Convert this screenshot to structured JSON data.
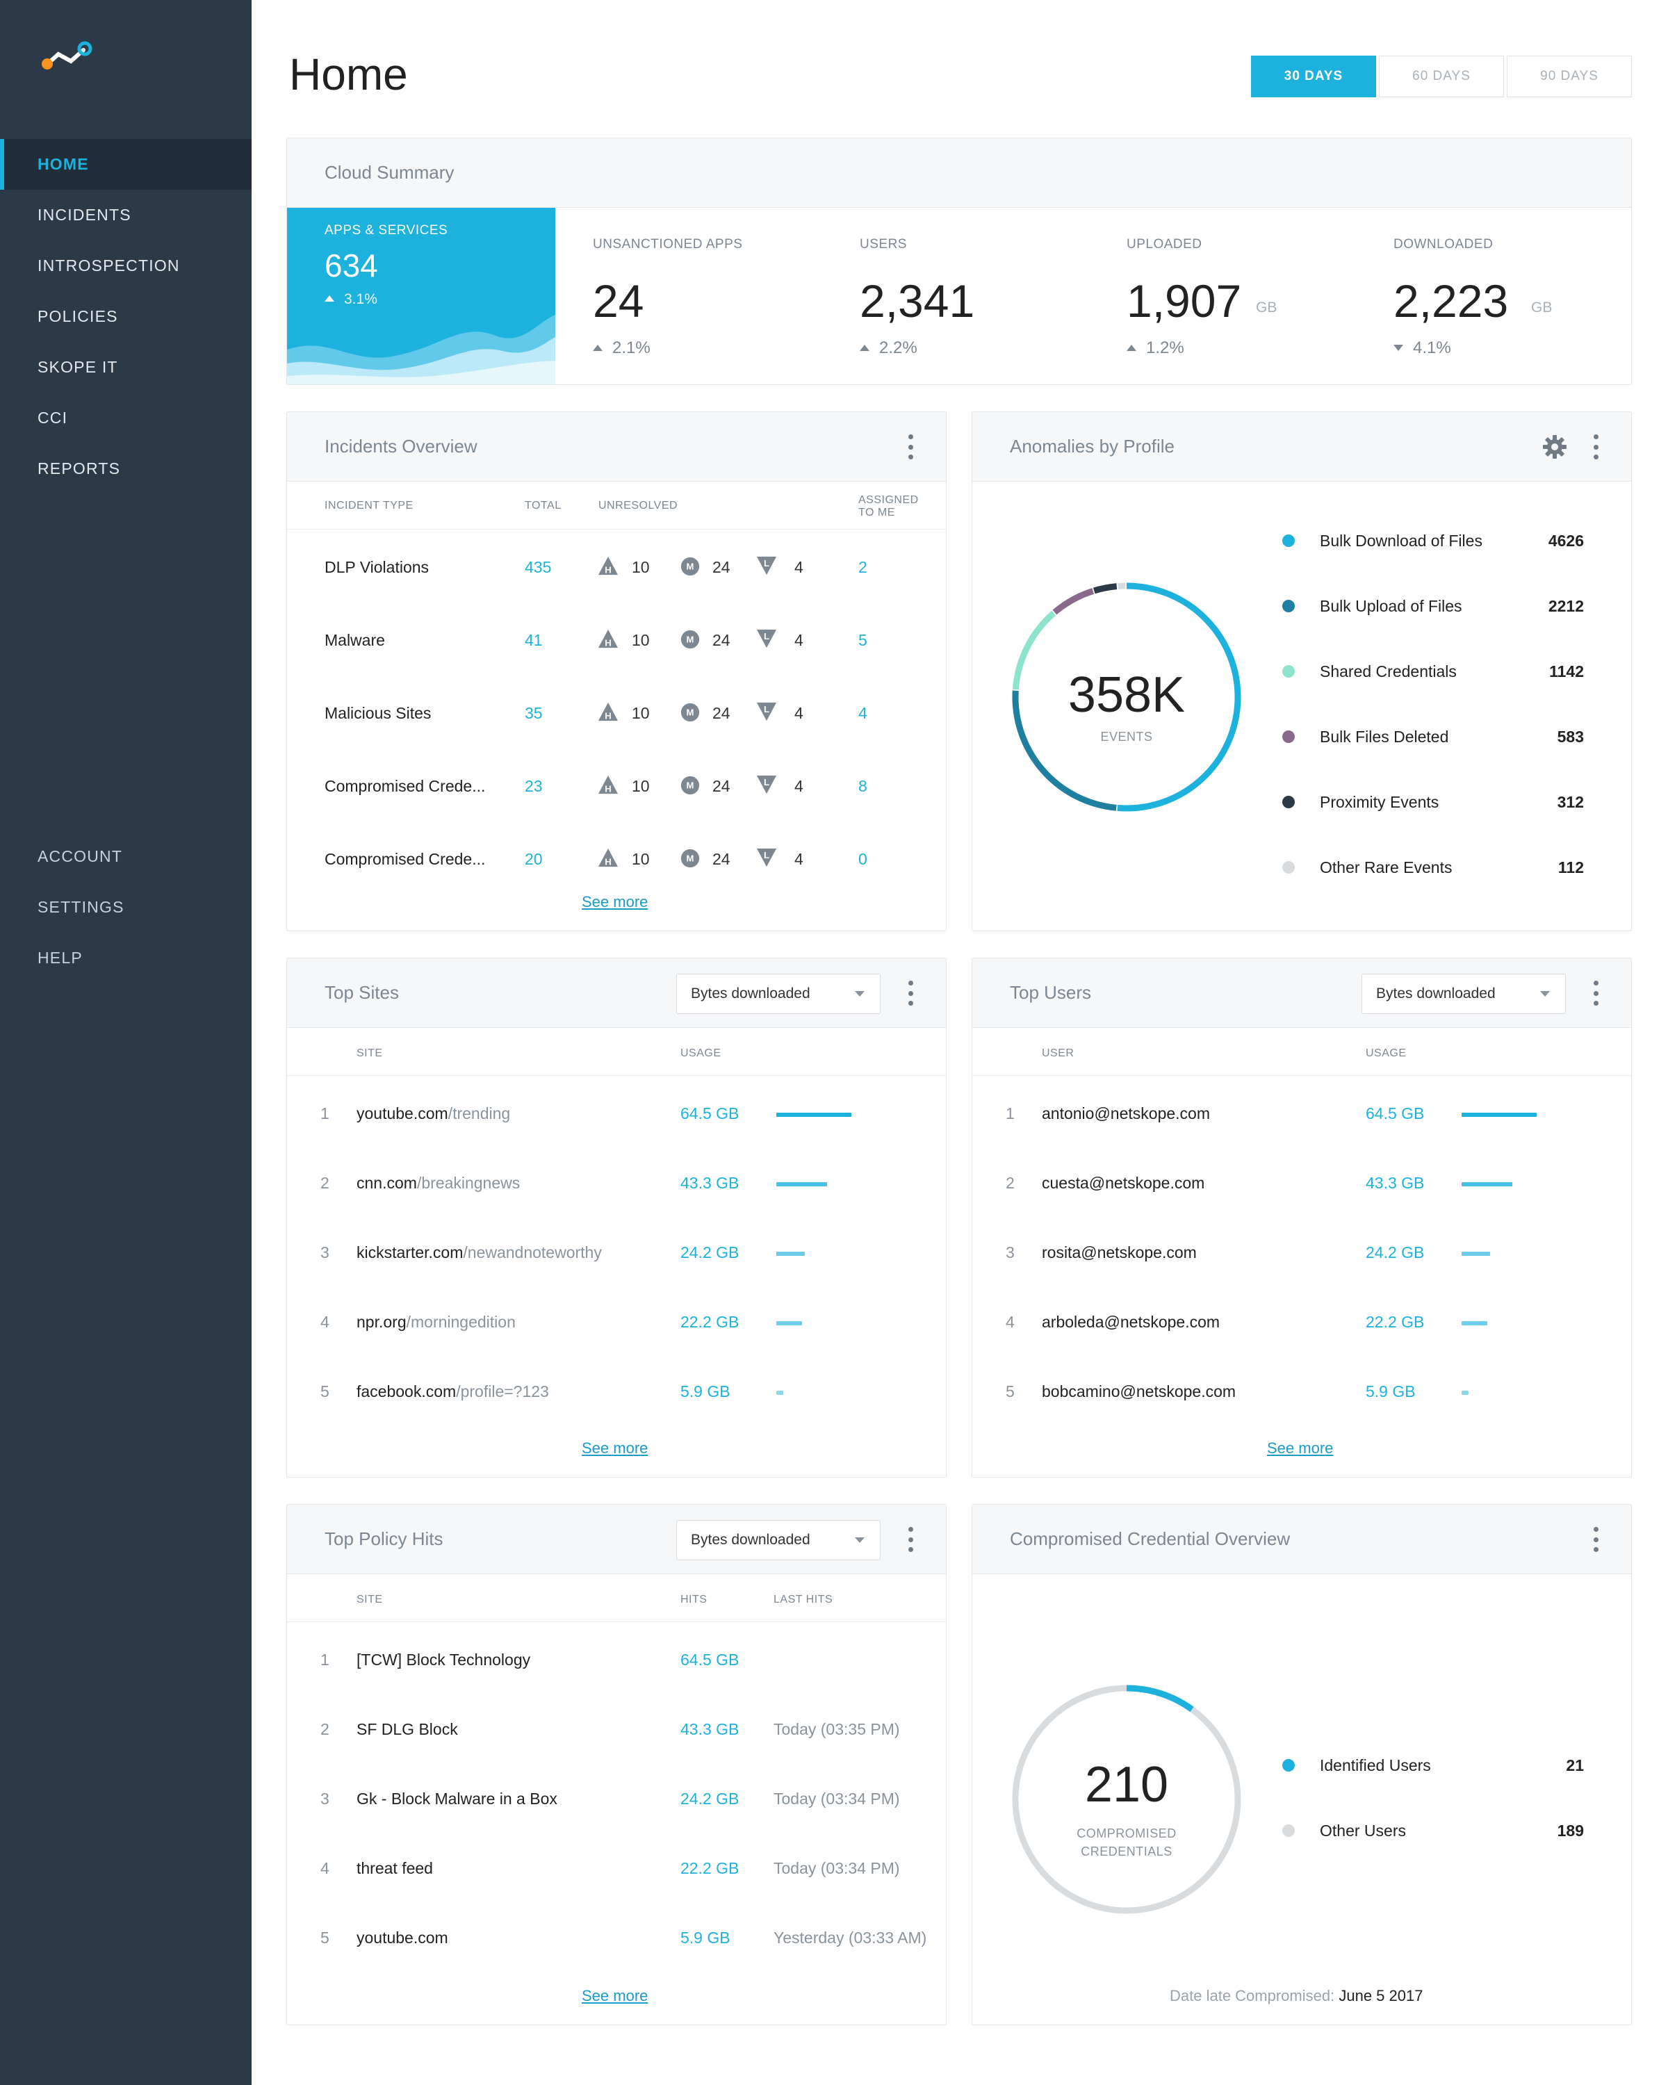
{
  "nav": {
    "top": [
      {
        "label": "HOME",
        "active": true
      },
      {
        "label": "INCIDENTS"
      },
      {
        "label": "INTROSPECTION"
      },
      {
        "label": "POLICIES"
      },
      {
        "label": "SKOPE IT"
      },
      {
        "label": "CCI"
      },
      {
        "label": "REPORTS"
      }
    ],
    "bottom": [
      {
        "label": "ACCOUNT"
      },
      {
        "label": "SETTINGS"
      },
      {
        "label": "HELP"
      }
    ]
  },
  "header": {
    "title": "Home",
    "ranges": [
      {
        "label": "30 DAYS",
        "active": true
      },
      {
        "label": "60 DAYS"
      },
      {
        "label": "90 DAYS"
      }
    ]
  },
  "cloud_summary": {
    "title": "Cloud Summary",
    "tile": {
      "label": "APPS & SERVICES",
      "value": "634",
      "delta": "3.1%"
    },
    "metrics": [
      {
        "label": "UNSANCTIONED APPS",
        "value": "24",
        "unit": "",
        "delta": "2.1%",
        "dir": "up"
      },
      {
        "label": "USERS",
        "value": "2,341",
        "unit": "",
        "delta": "2.2%",
        "dir": "up"
      },
      {
        "label": "UPLOADED",
        "value": "1,907",
        "unit": "GB",
        "delta": "1.2%",
        "dir": "up"
      },
      {
        "label": "DOWNLOADED",
        "value": "2,223",
        "unit": "GB",
        "delta": "4.1%",
        "dir": "down"
      }
    ]
  },
  "incidents": {
    "title": "Incidents Overview",
    "cols": {
      "type": "INCIDENT TYPE",
      "total": "TOTAL",
      "unresolved": "UNRESOLVED",
      "assigned": "ASSIGNED",
      "assigned2": "TO ME"
    },
    "sev_letters": {
      "h": "H",
      "m": "M",
      "l": "L"
    },
    "rows": [
      {
        "type": "DLP Violations",
        "total": "435",
        "h": "10",
        "m": "24",
        "l": "4",
        "assigned": "2"
      },
      {
        "type": "Malware",
        "total": "41",
        "h": "10",
        "m": "24",
        "l": "4",
        "assigned": "5"
      },
      {
        "type": "Malicious Sites",
        "total": "35",
        "h": "10",
        "m": "24",
        "l": "4",
        "assigned": "4"
      },
      {
        "type": "Compromised Crede...",
        "total": "23",
        "h": "10",
        "m": "24",
        "l": "4",
        "assigned": "8"
      },
      {
        "type": "Compromised Crede...",
        "total": "20",
        "h": "10",
        "m": "24",
        "l": "4",
        "assigned": "0"
      }
    ],
    "see_more": "See more"
  },
  "anomalies": {
    "title": "Anomalies by Profile",
    "center_value": "358K",
    "center_label": "EVENTS",
    "items": [
      {
        "label": "Bulk Download of Files",
        "value": "4626",
        "color": "#1db2de"
      },
      {
        "label": "Bulk Upload of Files",
        "value": "2212",
        "color": "#1f7fa0"
      },
      {
        "label": "Shared Credentials",
        "value": "1142",
        "color": "#8de3cc"
      },
      {
        "label": "Bulk Files Deleted",
        "value": "583",
        "color": "#8a6a8c"
      },
      {
        "label": "Proximity Events",
        "value": "312",
        "color": "#2c3a47"
      },
      {
        "label": "Other Rare Events",
        "value": "112",
        "color": "#d8dcdf"
      }
    ]
  },
  "top_sites": {
    "title": "Top Sites",
    "select": "Bytes downloaded",
    "cols": {
      "site": "SITE",
      "usage": "USAGE"
    },
    "rows": [
      {
        "idx": "1",
        "domain": "youtube.com",
        "path": "/trending",
        "usage": "64.5 GB",
        "gb": 64.5
      },
      {
        "idx": "2",
        "domain": "cnn.com",
        "path": "/breakingnews",
        "usage": "43.3 GB",
        "gb": 43.3
      },
      {
        "idx": "3",
        "domain": "kickstarter.com",
        "path": "/newandnoteworthy",
        "usage": "24.2 GB",
        "gb": 24.2
      },
      {
        "idx": "4",
        "domain": "npr.org",
        "path": "/morningedition",
        "usage": "22.2 GB",
        "gb": 22.2
      },
      {
        "idx": "5",
        "domain": "facebook.com",
        "path": "/profile=?123",
        "usage": "5.9 GB",
        "gb": 5.9
      }
    ],
    "see_more": "See more"
  },
  "top_users": {
    "title": "Top Users",
    "select": "Bytes downloaded",
    "cols": {
      "user": "USER",
      "usage": "USAGE"
    },
    "rows": [
      {
        "idx": "1",
        "user": "antonio@netskope.com",
        "usage": "64.5 GB",
        "gb": 64.5
      },
      {
        "idx": "2",
        "user": "cuesta@netskope.com",
        "usage": "43.3 GB",
        "gb": 43.3
      },
      {
        "idx": "3",
        "user": "rosita@netskope.com",
        "usage": "24.2 GB",
        "gb": 24.2
      },
      {
        "idx": "4",
        "user": "arboleda@netskope.com",
        "usage": "22.2 GB",
        "gb": 22.2
      },
      {
        "idx": "5",
        "user": "bobcamino@netskope.com",
        "usage": "5.9 GB",
        "gb": 5.9
      }
    ],
    "see_more": "See more"
  },
  "policy_hits": {
    "title": "Top Policy Hits",
    "select": "Bytes downloaded",
    "cols": {
      "site": "SITE",
      "hits": "HITS",
      "last": "LAST HITS"
    },
    "rows": [
      {
        "idx": "1",
        "site": "[TCW] Block Technology",
        "hits": "64.5 GB",
        "last": ""
      },
      {
        "idx": "2",
        "site": "SF DLG Block",
        "hits": "43.3 GB",
        "last": "Today (03:35 PM)"
      },
      {
        "idx": "3",
        "site": "Gk - Block Malware in a Box",
        "hits": "24.2 GB",
        "last": "Today (03:34 PM)"
      },
      {
        "idx": "4",
        "site": "threat feed",
        "hits": "22.2 GB",
        "last": "Today (03:34 PM)"
      },
      {
        "idx": "5",
        "site": "youtube.com",
        "hits": "5.9 GB",
        "last": "Yesterday (03:33 AM)"
      }
    ],
    "see_more": "See more"
  },
  "credentials": {
    "title": "Compromised Credential Overview",
    "center_value": "210",
    "center_label_1": "COMPROMISED",
    "center_label_2": "CREDENTIALS",
    "items": [
      {
        "label": "Identified Users",
        "value": "21",
        "color": "#1db2de"
      },
      {
        "label": "Other Users",
        "value": "189",
        "color": "#d8dcdf"
      }
    ],
    "date_label": "Date late Compromised:",
    "date_value": "June 5 2017"
  }
}
